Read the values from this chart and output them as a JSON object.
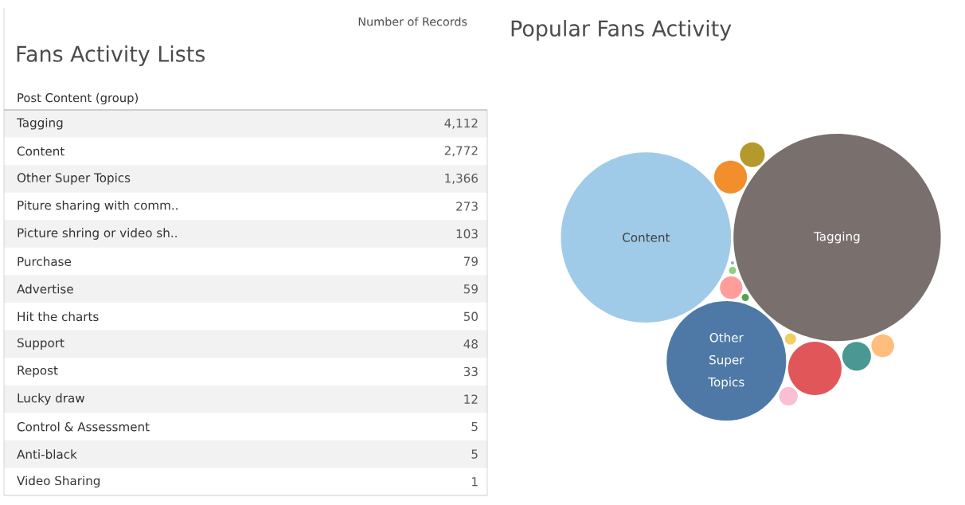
{
  "chart_data": [
    {
      "type": "other",
      "title": "Fans Activity Lists",
      "xlabel": "Post Content (group)",
      "ylabel": "Number of Records",
      "categories": [
        "Tagging",
        "Content",
        "Other Super Topics",
        "Piture sharing with comm..",
        "Picture shring or video sh..",
        "Purchase",
        "Advertise",
        "Hit the charts",
        "Support",
        "Repost",
        "Lucky draw",
        "Control & Assessment",
        "Anti-black",
        "Video Sharing"
      ],
      "values": [
        4112,
        2772,
        1366,
        273,
        103,
        79,
        59,
        50,
        48,
        33,
        12,
        5,
        5,
        1
      ],
      "value_labels": [
        "4,112",
        "2,772",
        "1,366",
        "273",
        "103",
        "79",
        "59",
        "50",
        "48",
        "33",
        "12",
        "5",
        "5",
        "1"
      ]
    },
    {
      "type": "other",
      "title": "Popular Fans Activity",
      "categories": [
        "Tagging",
        "Content",
        "Other Super Topics",
        null,
        null,
        null,
        null,
        null,
        null,
        null,
        null,
        null,
        null,
        null
      ],
      "colors": [
        "#79706e",
        "#a0cbe8",
        "#4e79a7",
        "#e15759",
        "#f28e2b",
        "#499894",
        "#b6992d",
        "#ffbe7d",
        "#ff9d9a",
        "#fabfd2",
        "#f1ce63",
        "#59a14f",
        "#8cd17d",
        "#86bcb6"
      ]
    }
  ]
}
